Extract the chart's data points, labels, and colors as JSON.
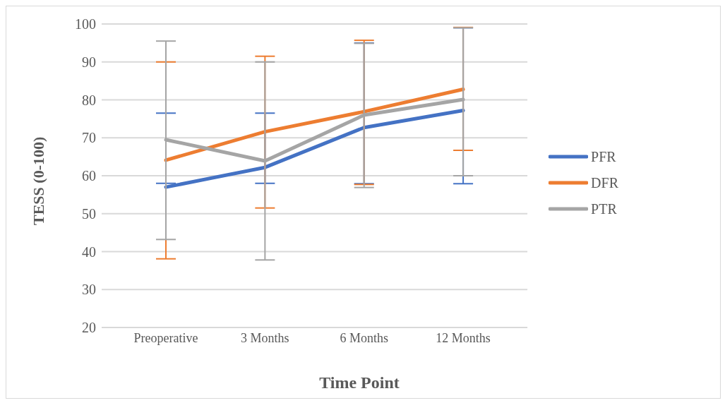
{
  "chart_data": {
    "type": "line",
    "xlabel": "Time Point",
    "ylabel": "TESS (0-100)",
    "categories": [
      "Preoperative",
      "3 Months",
      "6 Months",
      "12 Months"
    ],
    "ylim": [
      20,
      100
    ],
    "yticks": [
      20,
      30,
      40,
      50,
      60,
      70,
      80,
      90,
      100
    ],
    "grid": "y",
    "legend": "right",
    "marker": "none",
    "line_style": "solid",
    "series": [
      {
        "name": "PFR",
        "color": "#4472c4",
        "values": [
          57,
          62.2,
          72.7,
          77.2
        ],
        "errors": [
          [
            58,
            76.5
          ],
          [
            58,
            76.5
          ],
          [
            57.9,
            95
          ],
          [
            57.9,
            99
          ]
        ]
      },
      {
        "name": "DFR",
        "color": "#ed7d31",
        "values": [
          64.1,
          71.6,
          76.9,
          82.8
        ],
        "errors": [
          [
            38.1,
            90
          ],
          [
            51.5,
            91.5
          ],
          [
            57.7,
            95.7
          ],
          [
            66.7,
            99.1
          ]
        ]
      },
      {
        "name": "PTR",
        "color": "#a5a5a5",
        "values": [
          69.5,
          63.9,
          76,
          80.1
        ],
        "errors": [
          [
            43.2,
            95.5
          ],
          [
            37.8,
            90
          ],
          [
            56.9,
            94.9
          ],
          [
            60,
            99
          ]
        ]
      }
    ]
  }
}
